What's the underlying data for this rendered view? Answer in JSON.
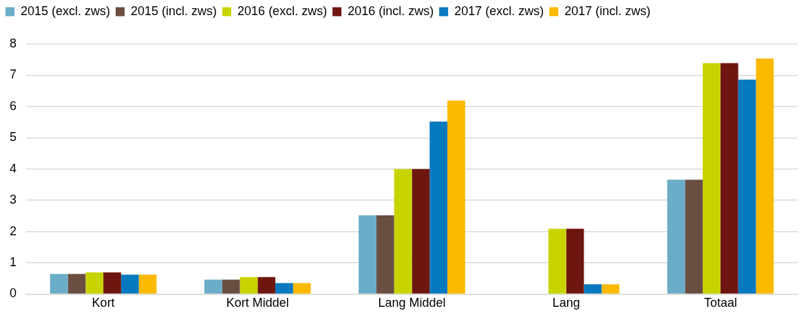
{
  "chart_data": {
    "type": "bar",
    "categories": [
      "Kort",
      "Kort Middel",
      "Lang Middel",
      "Lang",
      "Totaal"
    ],
    "series": [
      {
        "name": "2015 (excl. zws)",
        "color": "#6aadc8",
        "values": [
          0.64,
          0.46,
          2.52,
          null,
          3.66
        ]
      },
      {
        "name": "2015 (incl. zws)",
        "color": "#6b4e42",
        "values": [
          0.64,
          0.46,
          2.52,
          null,
          3.66
        ]
      },
      {
        "name": "2016 (excl. zws)",
        "color": "#c8d400",
        "values": [
          0.69,
          0.54,
          4.0,
          2.09,
          7.39
        ]
      },
      {
        "name": "2016 (incl. zws)",
        "color": "#6e1610",
        "values": [
          0.69,
          0.54,
          4.0,
          2.09,
          7.39
        ]
      },
      {
        "name": "2017 (excl. zws)",
        "color": "#0779bf",
        "values": [
          0.62,
          0.35,
          5.52,
          0.31,
          6.86
        ]
      },
      {
        "name": "2017 (incl. zws)",
        "color": "#fbb900",
        "values": [
          0.62,
          0.35,
          6.19,
          0.31,
          7.54
        ]
      }
    ],
    "ylim": [
      0,
      8
    ],
    "yticks": [
      0,
      1,
      2,
      3,
      4,
      5,
      6,
      7,
      8
    ],
    "grid": "y",
    "legend": "top"
  }
}
